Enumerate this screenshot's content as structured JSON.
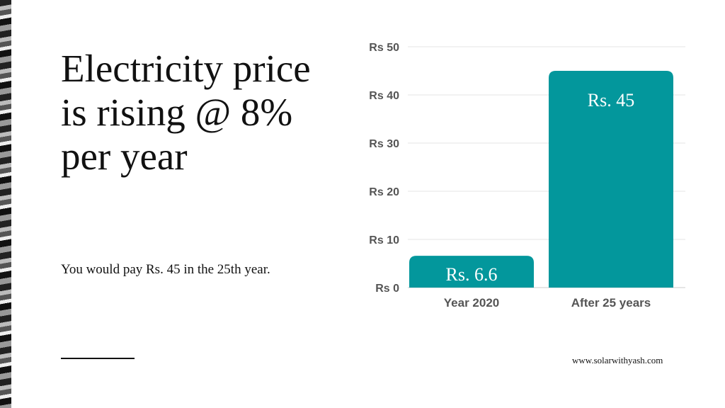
{
  "heading": "Electricity price is rising @ 8% per year",
  "subheading": "You would pay Rs. 45 in the 25th year.",
  "website": "www.solarwithyash.com",
  "chart_data": {
    "type": "bar",
    "categories": [
      "Year 2020",
      "After 25 years"
    ],
    "values": [
      6.6,
      45
    ],
    "data_labels": [
      "Rs. 6.6",
      "Rs. 45"
    ],
    "ylim": [
      0,
      50
    ],
    "yticks": [
      0,
      10,
      20,
      30,
      40,
      50
    ],
    "ytick_labels": [
      "Rs 0",
      "Rs 10",
      "Rs 20",
      "Rs 30",
      "Rs 40",
      "Rs 50"
    ],
    "grid": true,
    "bar_color": "#03979C",
    "xlabel": "",
    "ylabel": ""
  }
}
